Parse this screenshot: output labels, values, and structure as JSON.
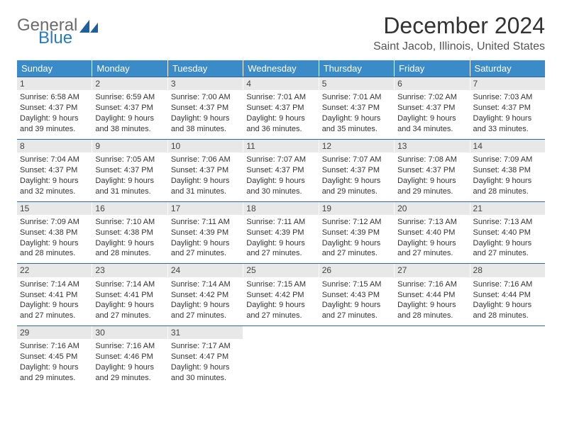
{
  "brand": {
    "word1": "General",
    "word2": "Blue",
    "logo_color": "#1f5f9e"
  },
  "title": "December 2024",
  "location": "Saint Jacob, Illinois, United States",
  "colors": {
    "header_bg": "#3b8bc8",
    "header_fg": "#ffffff",
    "row_border": "#2f6aa0",
    "daynum_bg": "#e8e8e8",
    "text": "#333333"
  },
  "day_headers": [
    "Sunday",
    "Monday",
    "Tuesday",
    "Wednesday",
    "Thursday",
    "Friday",
    "Saturday"
  ],
  "days": [
    {
      "n": 1,
      "sr": "6:58 AM",
      "ss": "4:37 PM",
      "dl": "9 hours and 39 minutes."
    },
    {
      "n": 2,
      "sr": "6:59 AM",
      "ss": "4:37 PM",
      "dl": "9 hours and 38 minutes."
    },
    {
      "n": 3,
      "sr": "7:00 AM",
      "ss": "4:37 PM",
      "dl": "9 hours and 38 minutes."
    },
    {
      "n": 4,
      "sr": "7:01 AM",
      "ss": "4:37 PM",
      "dl": "9 hours and 36 minutes."
    },
    {
      "n": 5,
      "sr": "7:01 AM",
      "ss": "4:37 PM",
      "dl": "9 hours and 35 minutes."
    },
    {
      "n": 6,
      "sr": "7:02 AM",
      "ss": "4:37 PM",
      "dl": "9 hours and 34 minutes."
    },
    {
      "n": 7,
      "sr": "7:03 AM",
      "ss": "4:37 PM",
      "dl": "9 hours and 33 minutes."
    },
    {
      "n": 8,
      "sr": "7:04 AM",
      "ss": "4:37 PM",
      "dl": "9 hours and 32 minutes."
    },
    {
      "n": 9,
      "sr": "7:05 AM",
      "ss": "4:37 PM",
      "dl": "9 hours and 31 minutes."
    },
    {
      "n": 10,
      "sr": "7:06 AM",
      "ss": "4:37 PM",
      "dl": "9 hours and 31 minutes."
    },
    {
      "n": 11,
      "sr": "7:07 AM",
      "ss": "4:37 PM",
      "dl": "9 hours and 30 minutes."
    },
    {
      "n": 12,
      "sr": "7:07 AM",
      "ss": "4:37 PM",
      "dl": "9 hours and 29 minutes."
    },
    {
      "n": 13,
      "sr": "7:08 AM",
      "ss": "4:37 PM",
      "dl": "9 hours and 29 minutes."
    },
    {
      "n": 14,
      "sr": "7:09 AM",
      "ss": "4:38 PM",
      "dl": "9 hours and 28 minutes."
    },
    {
      "n": 15,
      "sr": "7:09 AM",
      "ss": "4:38 PM",
      "dl": "9 hours and 28 minutes."
    },
    {
      "n": 16,
      "sr": "7:10 AM",
      "ss": "4:38 PM",
      "dl": "9 hours and 28 minutes."
    },
    {
      "n": 17,
      "sr": "7:11 AM",
      "ss": "4:39 PM",
      "dl": "9 hours and 27 minutes."
    },
    {
      "n": 18,
      "sr": "7:11 AM",
      "ss": "4:39 PM",
      "dl": "9 hours and 27 minutes."
    },
    {
      "n": 19,
      "sr": "7:12 AM",
      "ss": "4:39 PM",
      "dl": "9 hours and 27 minutes."
    },
    {
      "n": 20,
      "sr": "7:13 AM",
      "ss": "4:40 PM",
      "dl": "9 hours and 27 minutes."
    },
    {
      "n": 21,
      "sr": "7:13 AM",
      "ss": "4:40 PM",
      "dl": "9 hours and 27 minutes."
    },
    {
      "n": 22,
      "sr": "7:14 AM",
      "ss": "4:41 PM",
      "dl": "9 hours and 27 minutes."
    },
    {
      "n": 23,
      "sr": "7:14 AM",
      "ss": "4:41 PM",
      "dl": "9 hours and 27 minutes."
    },
    {
      "n": 24,
      "sr": "7:14 AM",
      "ss": "4:42 PM",
      "dl": "9 hours and 27 minutes."
    },
    {
      "n": 25,
      "sr": "7:15 AM",
      "ss": "4:42 PM",
      "dl": "9 hours and 27 minutes."
    },
    {
      "n": 26,
      "sr": "7:15 AM",
      "ss": "4:43 PM",
      "dl": "9 hours and 27 minutes."
    },
    {
      "n": 27,
      "sr": "7:16 AM",
      "ss": "4:44 PM",
      "dl": "9 hours and 28 minutes."
    },
    {
      "n": 28,
      "sr": "7:16 AM",
      "ss": "4:44 PM",
      "dl": "9 hours and 28 minutes."
    },
    {
      "n": 29,
      "sr": "7:16 AM",
      "ss": "4:45 PM",
      "dl": "9 hours and 29 minutes."
    },
    {
      "n": 30,
      "sr": "7:16 AM",
      "ss": "4:46 PM",
      "dl": "9 hours and 29 minutes."
    },
    {
      "n": 31,
      "sr": "7:17 AM",
      "ss": "4:47 PM",
      "dl": "9 hours and 30 minutes."
    }
  ],
  "labels": {
    "sunrise": "Sunrise:",
    "sunset": "Sunset:",
    "daylight": "Daylight:"
  },
  "layout": {
    "first_weekday_offset": 0,
    "weeks": 5,
    "cols": 7
  }
}
